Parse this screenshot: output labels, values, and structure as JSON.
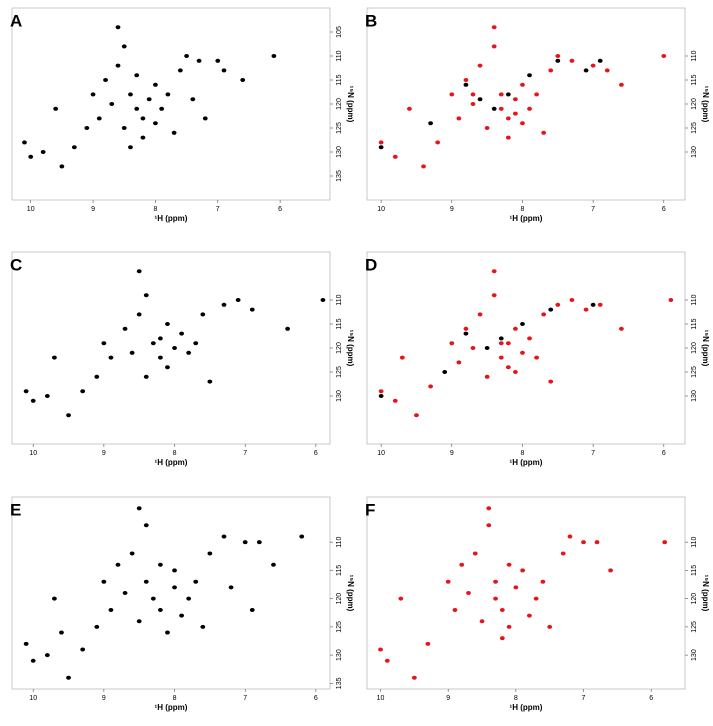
{
  "chart_data": [
    {
      "type": "scatter",
      "title": "A",
      "xlabel": "¹H (ppm)",
      "ylabel": "¹⁵N (ppm)",
      "xlim": [
        10.3,
        5.2
      ],
      "ylim": [
        100,
        140
      ],
      "xticks": [
        10,
        9,
        8,
        7,
        6
      ],
      "yticks": [
        105,
        110,
        115,
        120,
        125,
        130,
        135
      ],
      "series": [
        {
          "color": "#000000",
          "x": [
            9.6,
            9.5,
            9.3,
            9.1,
            9.0,
            8.9,
            8.8,
            8.7,
            8.6,
            8.5,
            8.5,
            8.4,
            8.3,
            8.3,
            8.2,
            8.2,
            8.1,
            8.0,
            8.0,
            7.9,
            7.8,
            7.7,
            7.6,
            7.5,
            7.4,
            7.3,
            7.2,
            7.0,
            6.9,
            6.6,
            6.1,
            10.1,
            10.0,
            9.8,
            8.6,
            8.4
          ],
          "y": [
            121,
            133,
            129,
            125,
            118,
            123,
            115,
            120,
            112,
            125,
            108,
            118,
            121,
            114,
            123,
            127,
            119,
            116,
            124,
            121,
            118,
            126,
            113,
            110,
            119,
            111,
            123,
            111,
            113,
            115,
            110,
            128,
            131,
            130,
            104,
            129
          ]
        }
      ]
    },
    {
      "type": "scatter",
      "title": "B",
      "xlabel": "¹H (ppm)",
      "ylabel": "¹⁵N (ppm)",
      "xlim": [
        10.2,
        5.7
      ],
      "ylim": [
        100,
        140
      ],
      "xticks": [
        10,
        9,
        8,
        7,
        6
      ],
      "yticks": [
        110,
        115,
        120,
        125,
        130
      ],
      "series": [
        {
          "color": "#e8141b",
          "x": [
            9.6,
            9.4,
            9.2,
            9.0,
            8.9,
            8.8,
            8.7,
            8.6,
            8.5,
            8.4,
            8.3,
            8.3,
            8.2,
            8.2,
            8.1,
            8.0,
            8.0,
            7.9,
            7.8,
            7.7,
            7.6,
            7.5,
            7.3,
            7.0,
            6.8,
            6.6,
            6.0,
            10.0,
            9.8,
            8.4,
            8.7,
            8.1
          ],
          "y": [
            121,
            133,
            128,
            118,
            123,
            115,
            120,
            112,
            125,
            108,
            118,
            121,
            123,
            127,
            119,
            116,
            124,
            121,
            118,
            126,
            113,
            110,
            111,
            112,
            113,
            116,
            110,
            128,
            131,
            104,
            118,
            122
          ]
        },
        {
          "color": "#000000",
          "x": [
            8.8,
            8.6,
            8.4,
            8.2,
            7.9,
            7.5,
            7.1,
            6.9,
            9.3,
            10.0
          ],
          "y": [
            116,
            119,
            121,
            118,
            114,
            111,
            113,
            111,
            124,
            129
          ]
        }
      ]
    },
    {
      "type": "scatter",
      "title": "C",
      "xlabel": "¹H (ppm)",
      "ylabel": "¹⁵N (ppm)",
      "xlim": [
        10.3,
        5.8
      ],
      "ylim": [
        100,
        140
      ],
      "xticks": [
        10,
        9,
        8,
        7,
        6
      ],
      "yticks": [
        110,
        115,
        120,
        125,
        130
      ],
      "series": [
        {
          "color": "#000000",
          "x": [
            9.7,
            9.5,
            9.3,
            9.1,
            9.0,
            8.9,
            8.7,
            8.6,
            8.5,
            8.4,
            8.4,
            8.3,
            8.2,
            8.1,
            8.1,
            8.0,
            7.9,
            7.8,
            7.7,
            7.6,
            7.5,
            7.3,
            7.1,
            6.9,
            6.4,
            5.9,
            10.1,
            10.0,
            9.8,
            8.5,
            8.2
          ],
          "y": [
            122,
            134,
            129,
            126,
            119,
            122,
            116,
            121,
            113,
            126,
            109,
            119,
            122,
            115,
            124,
            120,
            117,
            121,
            119,
            113,
            127,
            111,
            110,
            112,
            116,
            110,
            129,
            131,
            130,
            104,
            118
          ]
        }
      ]
    },
    {
      "type": "scatter",
      "title": "D",
      "xlabel": "¹H (ppm)",
      "ylabel": "¹⁵N (ppm)",
      "xlim": [
        10.2,
        5.7
      ],
      "ylim": [
        100,
        140
      ],
      "xticks": [
        10,
        9,
        8,
        7,
        6
      ],
      "yticks": [
        110,
        115,
        120,
        125,
        130
      ],
      "series": [
        {
          "color": "#e8141b",
          "x": [
            9.7,
            9.5,
            9.3,
            9.0,
            8.9,
            8.8,
            8.7,
            8.6,
            8.5,
            8.4,
            8.3,
            8.3,
            8.2,
            8.1,
            8.1,
            8.0,
            7.9,
            7.8,
            7.7,
            7.6,
            7.5,
            7.3,
            7.1,
            6.9,
            6.6,
            5.9,
            10.0,
            9.8,
            8.4,
            8.2
          ],
          "y": [
            122,
            134,
            128,
            119,
            123,
            116,
            120,
            113,
            126,
            109,
            119,
            122,
            124,
            116,
            125,
            121,
            118,
            122,
            113,
            127,
            111,
            110,
            112,
            111,
            116,
            110,
            129,
            131,
            104,
            119
          ]
        },
        {
          "color": "#000000",
          "x": [
            8.8,
            8.5,
            8.3,
            8.0,
            7.6,
            7.0,
            9.1,
            10.0
          ],
          "y": [
            117,
            120,
            118,
            115,
            112,
            111,
            125,
            130
          ]
        }
      ]
    },
    {
      "type": "scatter",
      "title": "E",
      "xlabel": "¹H (ppm)",
      "ylabel": "¹⁵N (ppm)",
      "xlim": [
        10.3,
        5.8
      ],
      "ylim": [
        102,
        136
      ],
      "xticks": [
        10,
        9,
        8,
        7,
        6
      ],
      "yticks": [
        110,
        115,
        120,
        125,
        130,
        135
      ],
      "series": [
        {
          "color": "#000000",
          "x": [
            9.7,
            9.5,
            9.3,
            9.1,
            9.0,
            8.9,
            8.8,
            8.7,
            8.6,
            8.5,
            8.4,
            8.4,
            8.3,
            8.2,
            8.2,
            8.1,
            8.0,
            8.0,
            7.9,
            7.8,
            7.7,
            7.6,
            7.5,
            7.3,
            7.2,
            7.0,
            6.9,
            6.8,
            6.6,
            6.2,
            10.1,
            10.0,
            9.8,
            8.5,
            9.6
          ],
          "y": [
            120,
            134,
            129,
            125,
            117,
            122,
            114,
            119,
            112,
            124,
            107,
            117,
            120,
            114,
            122,
            126,
            118,
            115,
            123,
            120,
            117,
            125,
            112,
            109,
            118,
            110,
            122,
            110,
            114,
            109,
            128,
            131,
            130,
            104,
            126
          ]
        }
      ]
    },
    {
      "type": "scatter",
      "title": "F",
      "xlabel": "¹H (ppm)",
      "ylabel": "¹⁵N (ppm)",
      "xlim": [
        10.2,
        5.5
      ],
      "ylim": [
        102,
        136
      ],
      "xticks": [
        10,
        9,
        8,
        7,
        6
      ],
      "yticks": [
        110,
        115,
        120,
        125,
        130
      ],
      "series": [
        {
          "color": "#e8141b",
          "x": [
            9.7,
            9.5,
            9.3,
            9.0,
            8.9,
            8.8,
            8.7,
            8.6,
            8.5,
            8.4,
            8.3,
            8.3,
            8.2,
            8.1,
            8.1,
            8.0,
            7.9,
            7.8,
            7.7,
            7.6,
            7.5,
            7.3,
            7.2,
            7.0,
            6.8,
            6.6,
            5.8,
            10.0,
            9.9,
            8.4,
            8.2
          ],
          "y": [
            120,
            134,
            128,
            117,
            122,
            114,
            119,
            112,
            124,
            107,
            117,
            120,
            122,
            114,
            125,
            118,
            115,
            123,
            120,
            117,
            125,
            112,
            109,
            110,
            110,
            115,
            110,
            129,
            131,
            104,
            127
          ]
        }
      ]
    }
  ]
}
